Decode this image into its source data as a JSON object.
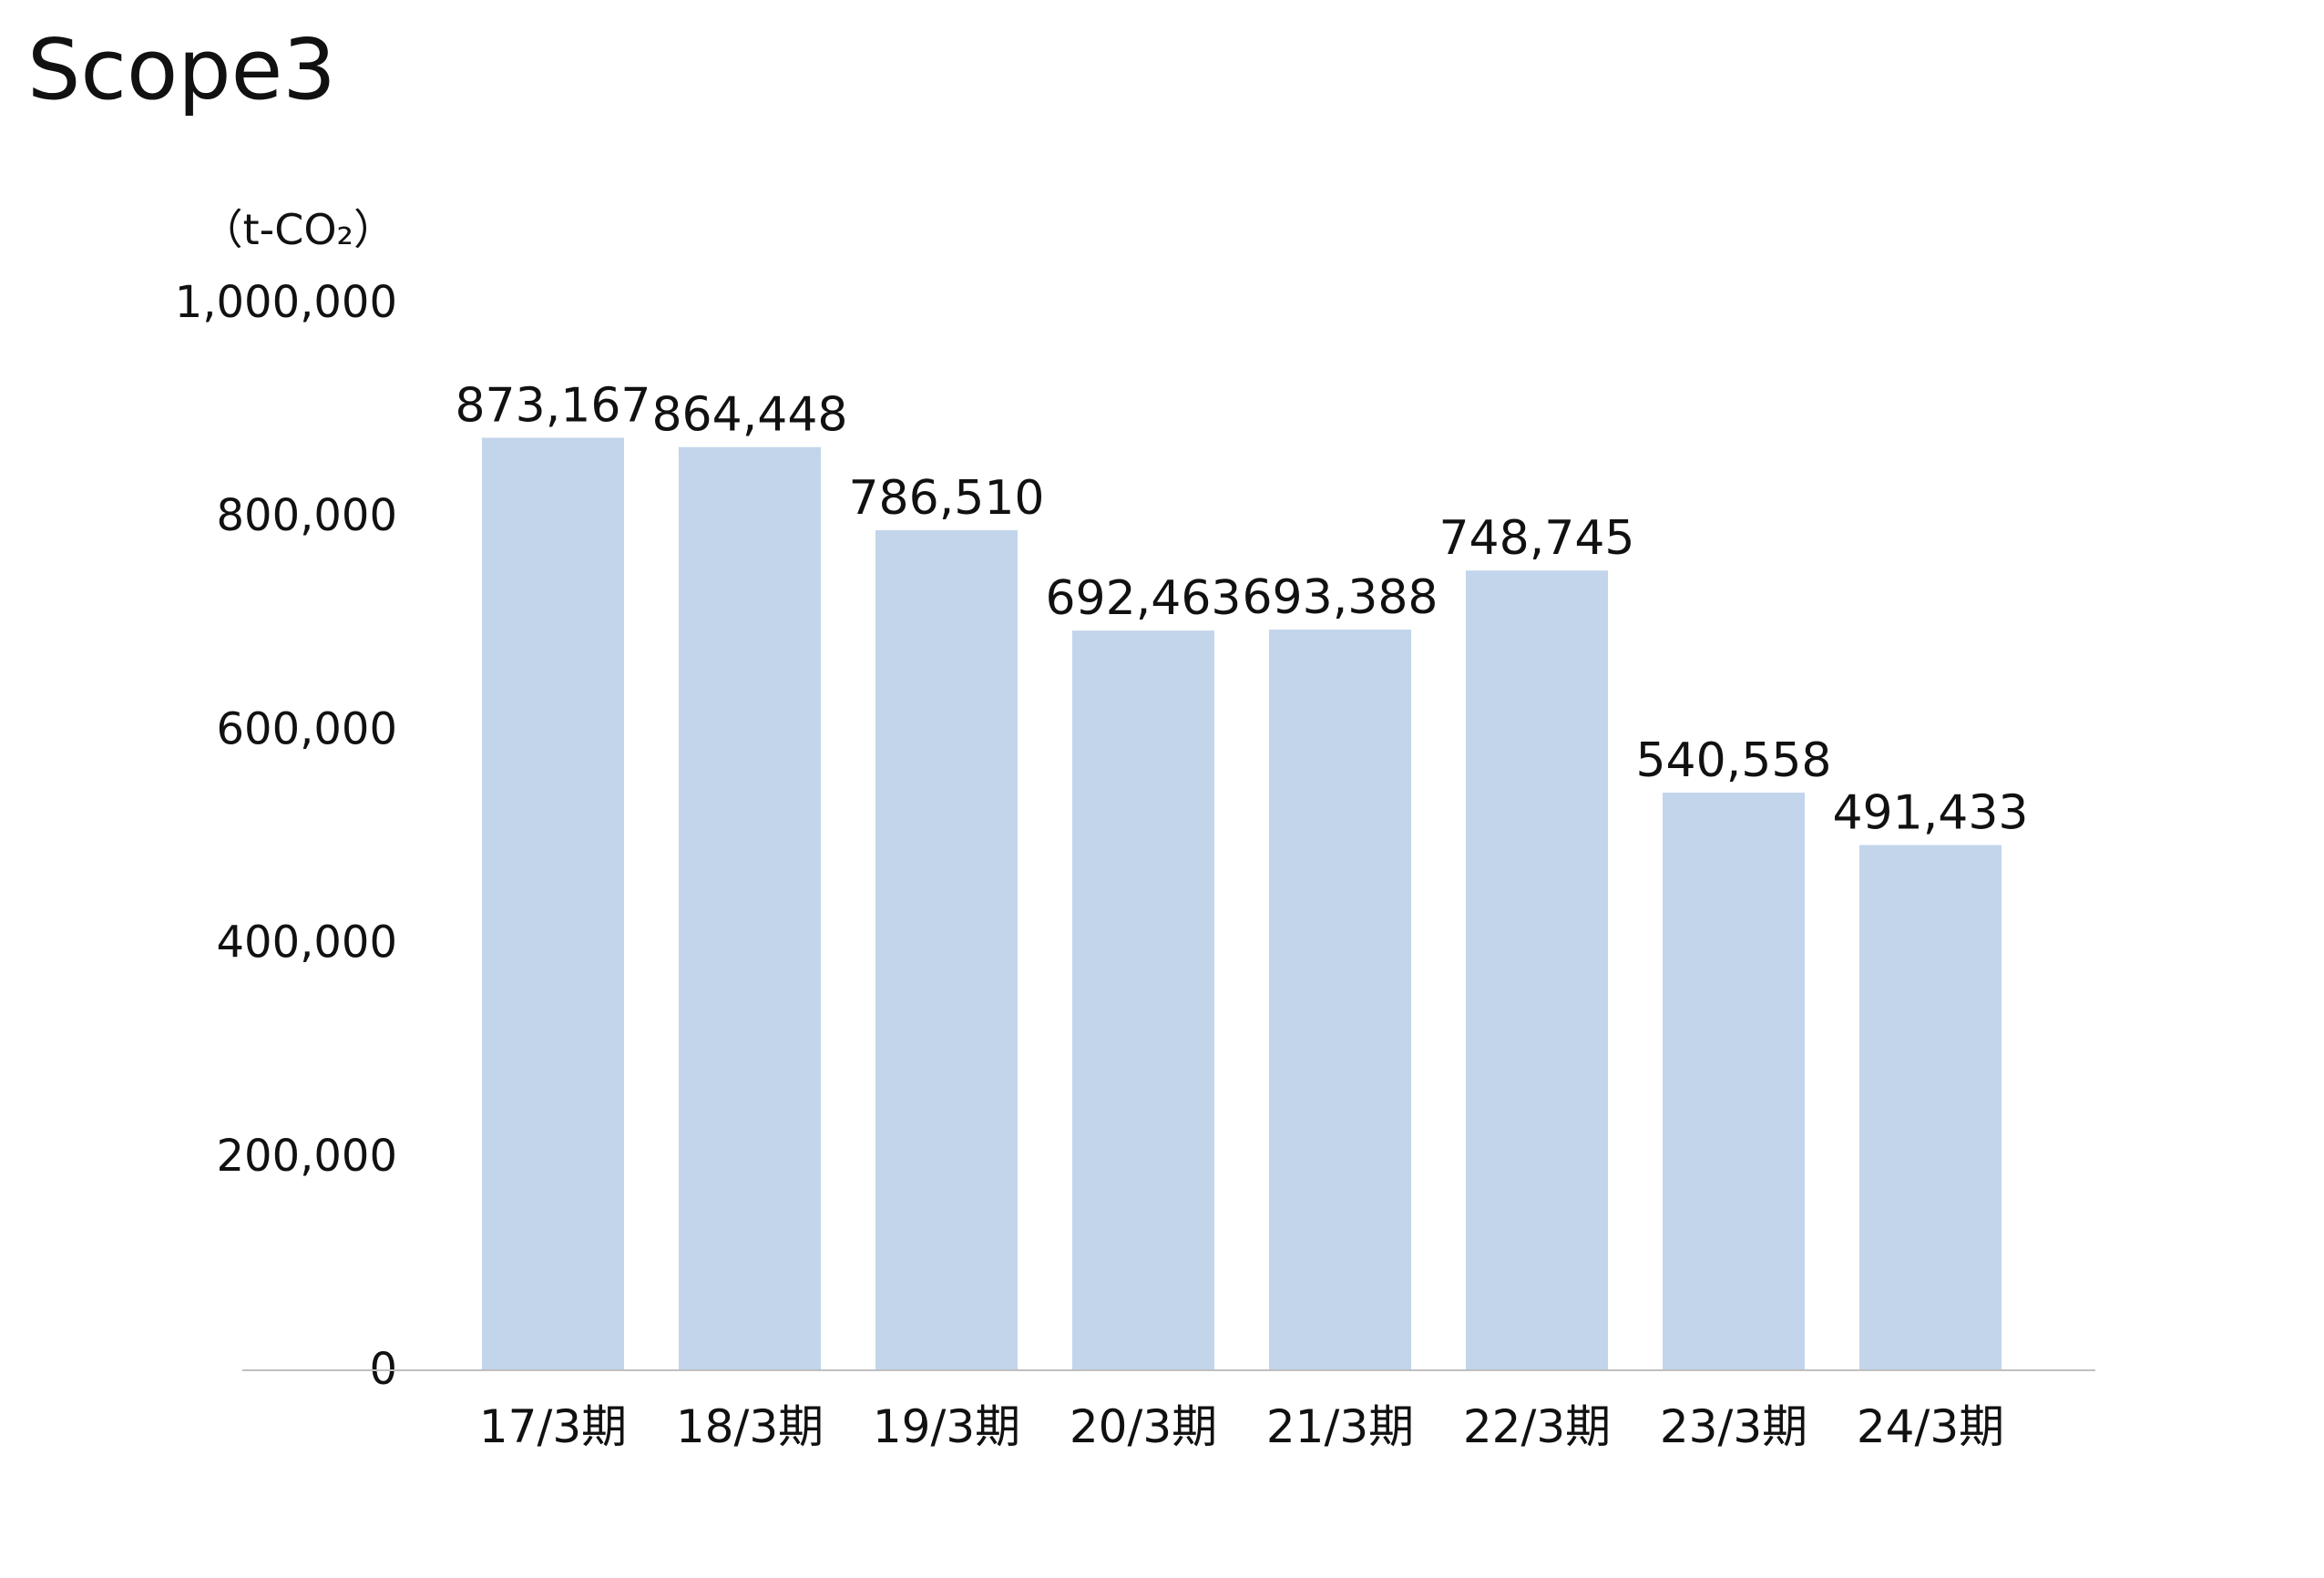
{
  "page": {
    "title": "Scope3"
  },
  "chart_data": {
    "type": "bar",
    "title": "Scope3",
    "unit_label": "（t-CO₂）",
    "categories": [
      "17/3期",
      "18/3期",
      "19/3期",
      "20/3期",
      "21/3期",
      "22/3期",
      "23/3期",
      "24/3期"
    ],
    "values": [
      873167,
      864448,
      786510,
      692463,
      693388,
      748745,
      540558,
      491433
    ],
    "value_labels": [
      "873,167",
      "864,448",
      "786,510",
      "692,463",
      "693,388",
      "748,745",
      "540,558",
      "491,433"
    ],
    "yticks": [
      0,
      200000,
      400000,
      600000,
      800000,
      1000000
    ],
    "ytick_labels": [
      "0",
      "200,000",
      "400,000",
      "600,000",
      "800,000",
      "1,000,000"
    ],
    "ylim": [
      0,
      1000000
    ],
    "grid": false,
    "legend": "none",
    "colors": {
      "bar": "#c2d5eb",
      "axis": "#bfbfbf",
      "text": "#111111"
    }
  }
}
